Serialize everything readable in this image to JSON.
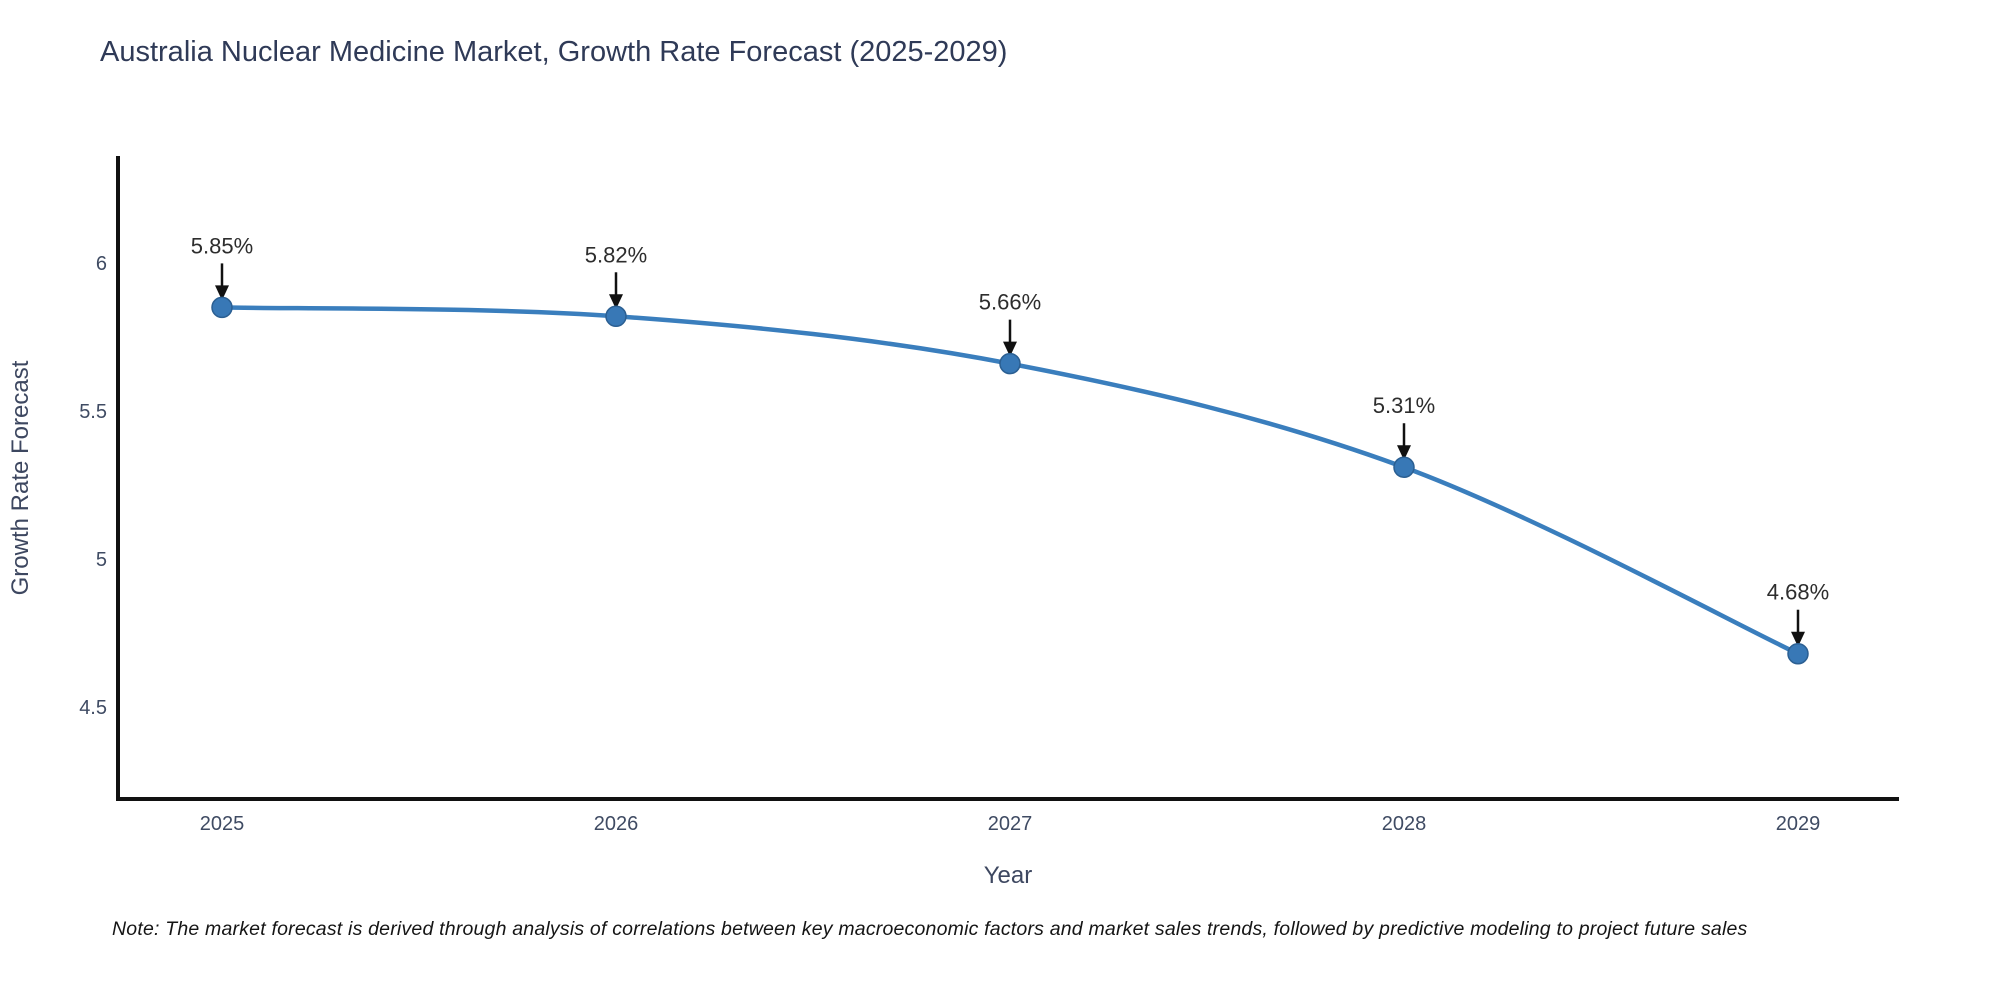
{
  "chart": {
    "title": "Australia Nuclear Medicine Market, Growth Rate Forecast (2025-2029)",
    "note": "Note: The market forecast is derived through analysis of correlations between key macroeconomic factors and market sales trends, followed by predictive modeling to project future sales"
  },
  "chart_data": {
    "type": "line",
    "title": "Australia Nuclear Medicine Market, Growth Rate Forecast (2025-2029)",
    "x": [
      2025,
      2026,
      2027,
      2028,
      2029
    ],
    "values": [
      5.85,
      5.82,
      5.66,
      5.31,
      4.68
    ],
    "point_labels": [
      "5.85%",
      "5.82%",
      "5.66%",
      "5.31%",
      "4.68%"
    ],
    "xlabel": "Year",
    "ylabel": "Growth Rate Forecast",
    "yticks": [
      6,
      5.5,
      5,
      4.5
    ],
    "ylim": [
      4.19,
      6.36
    ],
    "curve": "spline",
    "grid": false,
    "legend_position": "none",
    "colors": {
      "line": "#3a7ebd",
      "marker_fill": "#3878b6",
      "marker_edge": "#2b5f92",
      "axis": "#111111",
      "annotation_text": "#2d2d2d",
      "annotation_arrow": "#111111",
      "tick_text": "#3f4b63",
      "axis_title_text": "#3d4760",
      "title_text": "#2f3a57"
    }
  }
}
